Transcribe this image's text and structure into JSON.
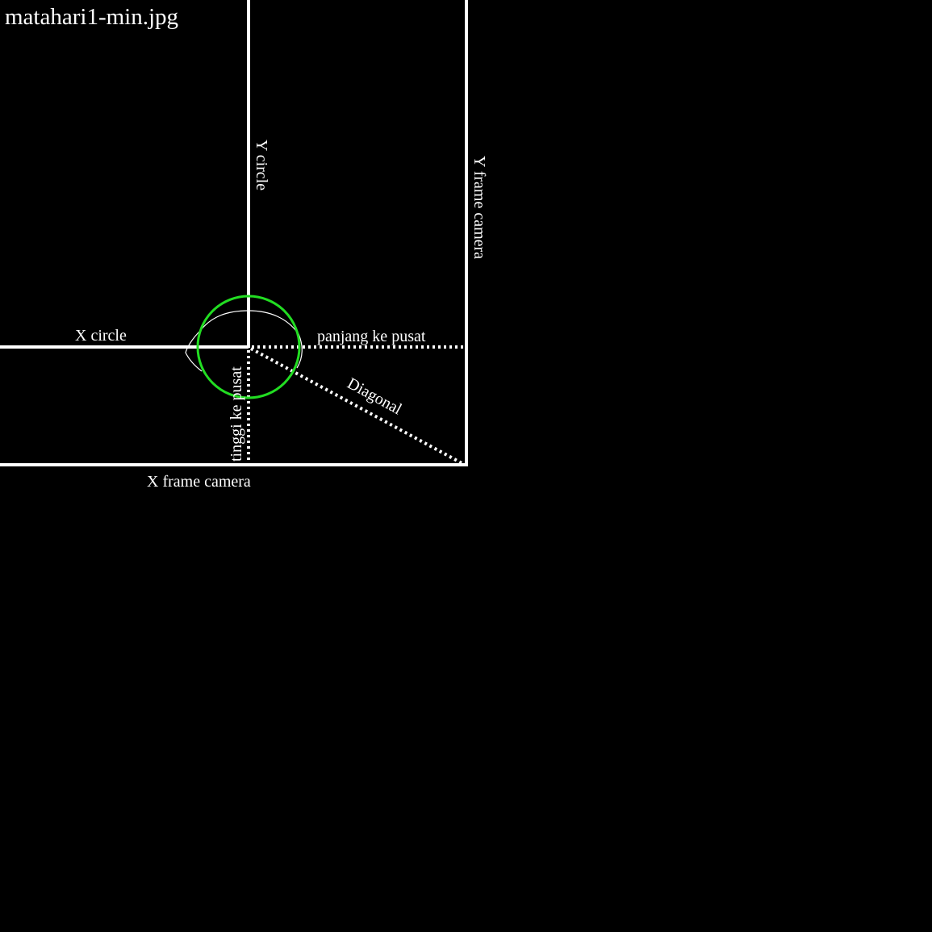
{
  "title": "matahari1-min.jpg",
  "labels": {
    "y_circle": "Y circle",
    "y_frame_camera": "Y frame camera",
    "x_circle": "X circle",
    "panjang_ke_pusat": "panjang ke pusat",
    "tinggi_ke_pusat": "tinggi ke pusat",
    "diagonal": "Diagonal",
    "x_frame_camera": "X frame camera"
  },
  "colors": {
    "background": "#000000",
    "lines": "#ffffff",
    "circle": "#22dd22"
  }
}
